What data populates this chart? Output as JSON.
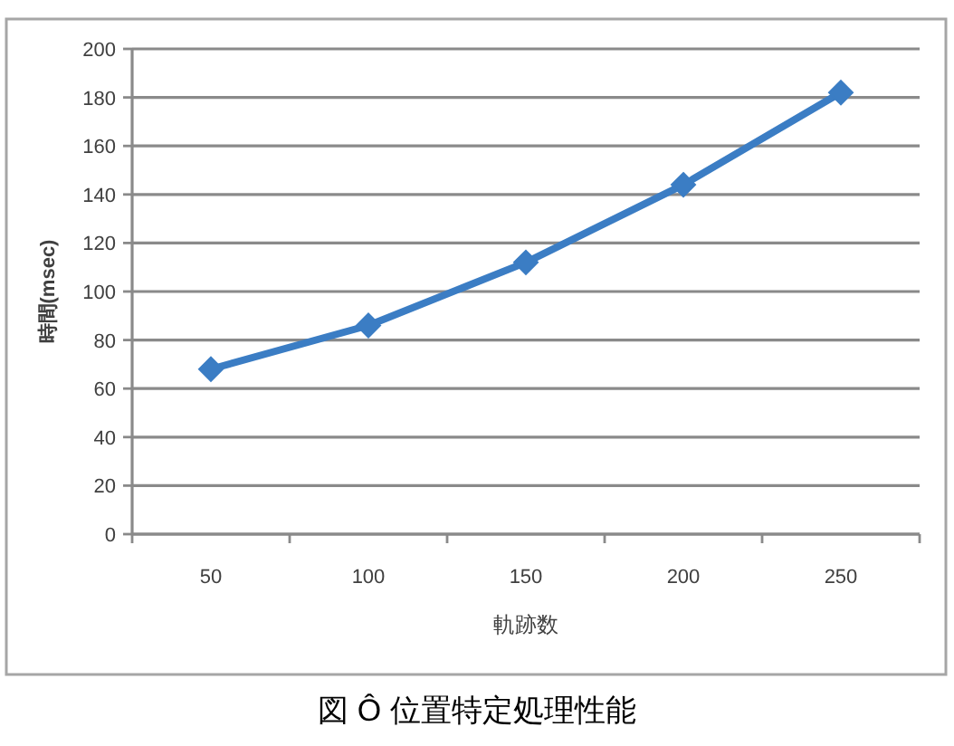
{
  "chart_data": {
    "type": "line",
    "xlabel": "軌跡数",
    "ylabel": "時間(msec)",
    "categories": [
      "50",
      "100",
      "150",
      "200",
      "250"
    ],
    "series": [
      {
        "color": "#3b7dc4",
        "values": [
          68,
          86,
          112,
          144,
          182
        ]
      }
    ],
    "ylim": [
      0,
      200
    ],
    "yticks": [
      0,
      20,
      40,
      60,
      80,
      100,
      120,
      140,
      160,
      180,
      200
    ],
    "grid": "y",
    "marker": "diamond",
    "line_style": "solid",
    "annotations": [
      "図 Ô 位置特定処理性能"
    ]
  }
}
